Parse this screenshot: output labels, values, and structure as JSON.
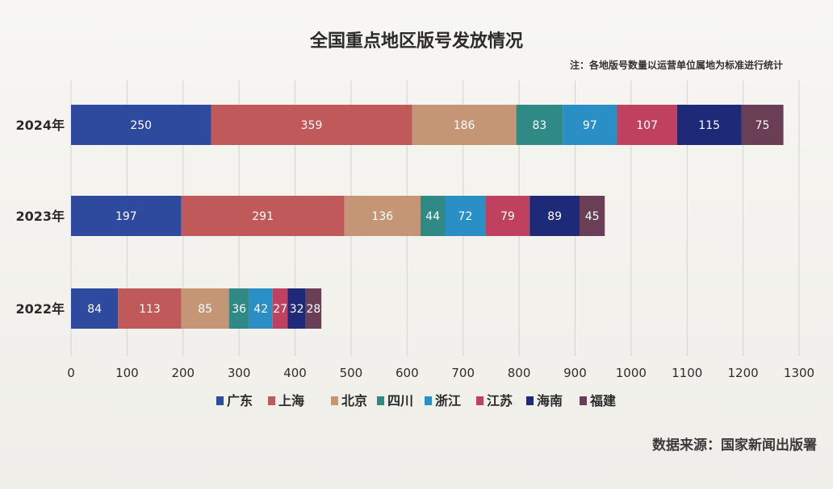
{
  "title": "全国重点地区版号发放情况",
  "note": "注：各地版号数量以运营单位属地为标准进行统计",
  "source": "数据来源：国家新闻出版署",
  "chart_data": {
    "type": "bar",
    "orientation": "horizontal",
    "stacked": true,
    "title": "全国重点地区版号发放情况",
    "categories": [
      "2024年",
      "2023年",
      "2022年"
    ],
    "x_ticks": [
      "0",
      "100",
      "200",
      "300",
      "400",
      "500",
      "600",
      "700",
      "800",
      "900",
      "1000",
      "1100",
      "1200",
      "1300"
    ],
    "xlim": [
      0,
      1300
    ],
    "grid": "vertical",
    "legend_position": "bottom",
    "series": [
      {
        "name": "广东",
        "color": "#2e4a9e",
        "values": [
          250,
          197,
          84
        ]
      },
      {
        "name": "上海",
        "color": "#c0595a",
        "values": [
          359,
          291,
          113
        ]
      },
      {
        "name": "北京",
        "color": "#c49676",
        "values": [
          186,
          136,
          85
        ]
      },
      {
        "name": "四川",
        "color": "#2f8a86",
        "values": [
          83,
          44,
          36
        ]
      },
      {
        "name": "浙江",
        "color": "#2a8fc4",
        "values": [
          97,
          72,
          42
        ]
      },
      {
        "name": "江苏",
        "color": "#c0415f",
        "values": [
          107,
          79,
          27
        ]
      },
      {
        "name": "海南",
        "color": "#1e2a78",
        "values": [
          115,
          89,
          32
        ]
      },
      {
        "name": "福建",
        "color": "#6a3f56",
        "values": [
          75,
          45,
          28
        ]
      }
    ]
  }
}
